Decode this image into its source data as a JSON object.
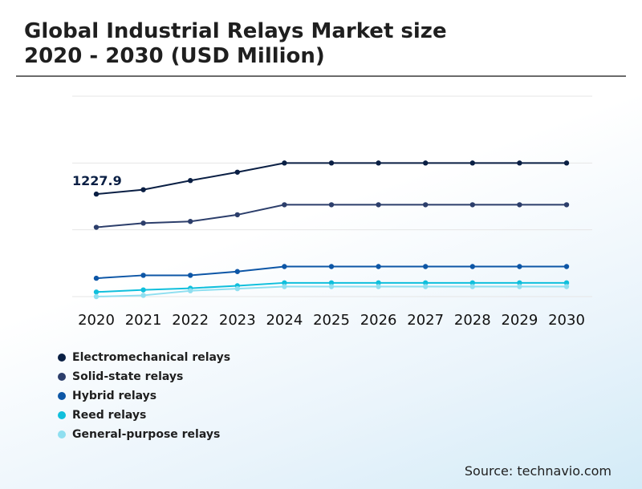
{
  "title": {
    "line1": "Global Industrial Relays Market size",
    "line2": "2020 - 2030 (USD Million)"
  },
  "source": "Source: technavio.com",
  "chart_data": {
    "type": "line",
    "categories": [
      "2020",
      "2021",
      "2022",
      "2023",
      "2024",
      "2025",
      "2026",
      "2027",
      "2028",
      "2029",
      "2030"
    ],
    "ylim": [
      0,
      2400
    ],
    "grid": true,
    "legend_position": "bottom-left",
    "annotations": [
      {
        "series": 0,
        "index": 0,
        "text": "1227.9"
      }
    ],
    "series": [
      {
        "name": "Electromechanical relays",
        "color": "#0a1f44",
        "values": [
          1227.9,
          1280,
          1390,
          1490,
          1600,
          1600,
          1600,
          1600,
          1600,
          1600,
          1600
        ]
      },
      {
        "name": "Solid-state relays",
        "color": "#2c3e6b",
        "values": [
          830,
          880,
          900,
          980,
          1100,
          1100,
          1100,
          1100,
          1100,
          1100,
          1100
        ]
      },
      {
        "name": "Hybrid relays",
        "color": "#0d56a6",
        "values": [
          220,
          255,
          255,
          300,
          360,
          360,
          360,
          360,
          360,
          360,
          360
        ]
      },
      {
        "name": "Reed relays",
        "color": "#10bfdc",
        "values": [
          55,
          80,
          100,
          130,
          165,
          165,
          165,
          165,
          165,
          165,
          165
        ]
      },
      {
        "name": "General-purpose relays",
        "color": "#8fdff0",
        "values": [
          0,
          15,
          70,
          95,
          120,
          120,
          120,
          120,
          120,
          120,
          120
        ]
      }
    ]
  }
}
